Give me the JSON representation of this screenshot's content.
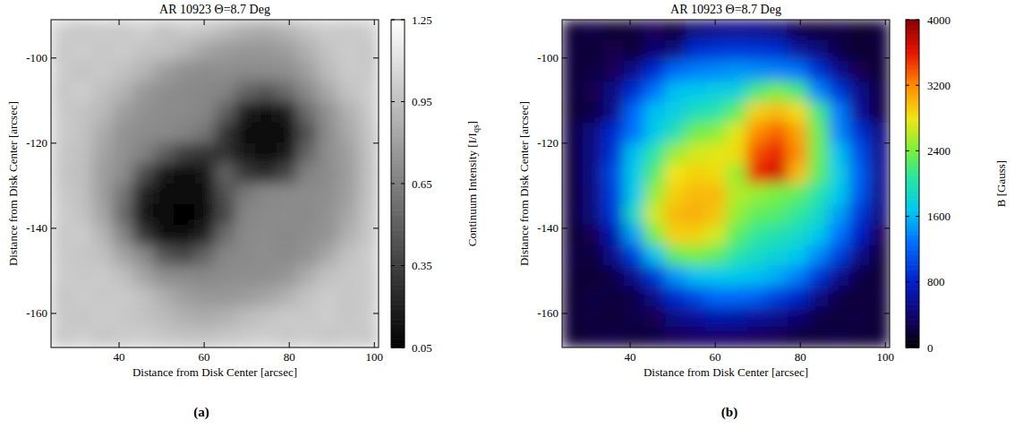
{
  "chart_data": [
    {
      "type": "heatmap",
      "title": "AR 10923 Θ=8.7 Deg",
      "label": "(a)",
      "x_label": "Distance from Disk Center [arcsec]",
      "y_label": "Distance from Disk Center [arcsec]",
      "xlim": [
        24,
        101
      ],
      "ylim": [
        -168,
        -91
      ],
      "xticks": [
        40,
        60,
        80,
        100
      ],
      "yticks": [
        -100,
        -120,
        -140,
        -160
      ],
      "color": "gray",
      "grid": false,
      "colorbar": {
        "range": [
          0.05,
          1.25
        ],
        "ticks": [
          0.05,
          0.35,
          0.65,
          0.95,
          1.25
        ],
        "label": "Continuum Intensity [I/I",
        "label_subscript": "qs",
        "label_end": "]"
      },
      "cells": [
        [
          1.02,
          0.98,
          1.01,
          0.99,
          1.03,
          0.97,
          1.0,
          0.98,
          0.93,
          0.88,
          0.86,
          0.9,
          0.97,
          1.01,
          0.99,
          1.02
        ],
        [
          0.99,
          1.02,
          0.98,
          1.01,
          0.97,
          0.96,
          0.9,
          0.82,
          0.78,
          0.76,
          0.76,
          0.79,
          0.88,
          0.97,
          1.01,
          0.98
        ],
        [
          1.01,
          0.97,
          1.0,
          0.96,
          0.9,
          0.8,
          0.73,
          0.71,
          0.72,
          0.7,
          0.71,
          0.72,
          0.8,
          0.93,
          1.0,
          0.99
        ],
        [
          0.98,
          1.02,
          0.95,
          0.89,
          0.77,
          0.72,
          0.7,
          0.69,
          0.66,
          0.52,
          0.45,
          0.55,
          0.7,
          0.84,
          0.97,
          1.01
        ],
        [
          1.0,
          0.97,
          0.92,
          0.8,
          0.73,
          0.71,
          0.7,
          0.68,
          0.5,
          0.17,
          0.12,
          0.18,
          0.55,
          0.73,
          0.88,
          0.99
        ],
        [
          1.01,
          0.97,
          0.86,
          0.74,
          0.71,
          0.7,
          0.67,
          0.6,
          0.3,
          0.12,
          0.1,
          0.13,
          0.42,
          0.71,
          0.84,
          0.97
        ],
        [
          0.99,
          0.96,
          0.82,
          0.73,
          0.66,
          0.5,
          0.33,
          0.3,
          0.28,
          0.14,
          0.1,
          0.16,
          0.52,
          0.72,
          0.8,
          0.96
        ],
        [
          0.98,
          0.95,
          0.8,
          0.71,
          0.42,
          0.15,
          0.12,
          0.14,
          0.5,
          0.32,
          0.25,
          0.38,
          0.66,
          0.71,
          0.79,
          0.95
        ],
        [
          1.0,
          0.96,
          0.8,
          0.6,
          0.2,
          0.1,
          0.09,
          0.11,
          0.42,
          0.62,
          0.69,
          0.7,
          0.71,
          0.72,
          0.8,
          0.96
        ],
        [
          1.02,
          0.97,
          0.83,
          0.55,
          0.16,
          0.09,
          0.08,
          0.12,
          0.38,
          0.68,
          0.7,
          0.71,
          0.7,
          0.73,
          0.83,
          0.97
        ],
        [
          0.99,
          1.01,
          0.9,
          0.68,
          0.32,
          0.12,
          0.1,
          0.22,
          0.56,
          0.7,
          0.71,
          0.69,
          0.72,
          0.74,
          0.88,
          0.98
        ],
        [
          1.0,
          0.98,
          0.96,
          0.82,
          0.7,
          0.45,
          0.38,
          0.52,
          0.68,
          0.7,
          0.72,
          0.7,
          0.73,
          0.84,
          0.96,
          1.01
        ],
        [
          1.01,
          0.99,
          1.0,
          0.95,
          0.82,
          0.72,
          0.7,
          0.69,
          0.71,
          0.72,
          0.72,
          0.75,
          0.86,
          0.96,
          0.99,
          1.0
        ],
        [
          0.98,
          1.01,
          0.99,
          1.0,
          0.96,
          0.87,
          0.8,
          0.76,
          0.76,
          0.78,
          0.82,
          0.88,
          0.97,
          1.01,
          0.98,
          1.0
        ],
        [
          1.0,
          0.98,
          1.01,
          0.99,
          0.97,
          0.93,
          0.88,
          0.86,
          0.88,
          0.93,
          0.97,
          1.0,
          0.99,
          1.02,
          0.98,
          1.01
        ],
        [
          0.99,
          1.02,
          0.98,
          1.0,
          1.01,
          0.98,
          0.97,
          0.96,
          0.98,
          1.0,
          1.02,
          0.99,
          1.01,
          0.98,
          1.0,
          0.99
        ]
      ]
    },
    {
      "type": "heatmap",
      "title": "AR 10923 Θ=8.7 Deg",
      "label": "(b)",
      "x_label": "Distance from Disk Center [arcsec]",
      "y_label": "Distance from Disk Center [arcsec]",
      "xlim": [
        24,
        101
      ],
      "ylim": [
        -168,
        -91
      ],
      "xticks": [
        40,
        60,
        80,
        100
      ],
      "yticks": [
        -100,
        -120,
        -140,
        -160
      ],
      "color": "rainbow",
      "grid": false,
      "colorbar": {
        "range": [
          0,
          4000
        ],
        "ticks": [
          0,
          800,
          1600,
          2400,
          3200,
          4000
        ],
        "label": "B [Gauss]"
      },
      "cells": [
        [
          180,
          260,
          150,
          220,
          310,
          170,
          450,
          520,
          560,
          540,
          480,
          260,
          190,
          240,
          150,
          210
        ],
        [
          230,
          170,
          280,
          190,
          420,
          450,
          880,
          930,
          960,
          940,
          900,
          620,
          480,
          250,
          180,
          220
        ],
        [
          200,
          240,
          300,
          520,
          880,
          1250,
          1350,
          1400,
          1450,
          1420,
          1380,
          1300,
          920,
          540,
          280,
          190
        ],
        [
          210,
          280,
          500,
          900,
          1300,
          1650,
          1700,
          1750,
          1800,
          2200,
          2400,
          2200,
          1400,
          950,
          520,
          240
        ],
        [
          190,
          250,
          520,
          1250,
          1650,
          1750,
          1950,
          2050,
          2300,
          2900,
          3000,
          2850,
          2200,
          1350,
          600,
          230
        ],
        [
          260,
          480,
          880,
          1300,
          1700,
          2000,
          2350,
          2450,
          2750,
          3200,
          3350,
          3100,
          2350,
          1400,
          920,
          480
        ],
        [
          220,
          520,
          920,
          1650,
          2050,
          2500,
          2700,
          2750,
          2850,
          3400,
          3550,
          3200,
          2350,
          1650,
          1100,
          550
        ],
        [
          210,
          530,
          1050,
          1700,
          2250,
          2800,
          2900,
          2850,
          2500,
          3550,
          3700,
          3000,
          2300,
          1750,
          1200,
          560
        ],
        [
          200,
          500,
          1000,
          1700,
          2500,
          2900,
          3000,
          3000,
          2600,
          2500,
          2400,
          2300,
          2050,
          1700,
          1150,
          520
        ],
        [
          230,
          480,
          950,
          1900,
          2700,
          3000,
          3050,
          2950,
          2500,
          2300,
          2250,
          2100,
          1900,
          1500,
          950,
          480
        ],
        [
          180,
          300,
          700,
          1500,
          2400,
          2900,
          2900,
          2700,
          2300,
          2100,
          2000,
          1900,
          1700,
          1300,
          800,
          300
        ],
        [
          240,
          220,
          520,
          1000,
          1650,
          2300,
          2400,
          2300,
          2050,
          1900,
          1800,
          1700,
          1400,
          1000,
          520,
          210
        ],
        [
          210,
          170,
          260,
          520,
          950,
          1450,
          1650,
          1700,
          1700,
          1650,
          1550,
          1350,
          950,
          550,
          260,
          190
        ],
        [
          180,
          250,
          220,
          260,
          520,
          880,
          1050,
          1250,
          1250,
          1200,
          1000,
          850,
          500,
          260,
          200,
          230
        ],
        [
          200,
          230,
          190,
          260,
          280,
          500,
          600,
          680,
          650,
          600,
          520,
          420,
          250,
          210,
          240,
          180
        ],
        [
          190,
          220,
          260,
          200,
          240,
          300,
          350,
          380,
          360,
          320,
          280,
          230,
          200,
          250,
          190,
          220
        ]
      ]
    }
  ]
}
